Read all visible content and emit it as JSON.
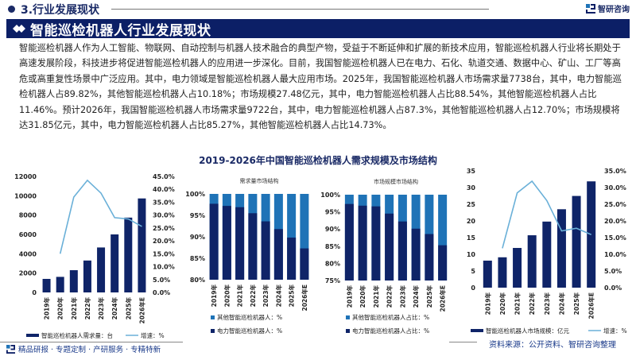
{
  "header": {
    "section_label": "3.行业发展现状",
    "brand": "智研咨询",
    "banner_title": "智能巡检机器人行业发展现状"
  },
  "paragraph": "智能巡检机器人作为人工智能、物联网、自动控制与机器人技术融合的典型产物，受益于不断延伸和扩展的新技术应用，智能巡检机器人行业将长期处于高速发展阶段，科技进步将促进智能巡检机器人的应用进一步深化。目前，我国智能巡检机器人已在电力、石化、轨道交通、数据中心、矿山、工厂等高危或高重复性场景中广泛应用。其中，电力领域是智能巡检机器人最大应用市场。2025年，我国智能巡检机器人市场需求量7738台，其中，电力智能巡检机器人占89.82%，其他智能巡检机器人占10.18%；市场规模27.48亿元，其中，电力智能巡检机器人占比88.54%，其他智能巡检机器人占比11.46%。预计2026年，我国智能巡检机器人市场需求量9722台，其中，电力智能巡检机器人占87.3%，其他智能巡检机器人占12.70%；市场规模将达31.85亿元，其中，电力智能巡检机器人占比85.27%，其他智能巡检机器人占比14.73%。",
  "figure_title": "2019-2026年中国智能巡检机器人需求规模及市场结构",
  "footer": {
    "slogan": "精品研报 · 专题定制 · 产研服务 · 专精特新",
    "source": "资料来源：公开资料、智研咨询整理"
  },
  "colors": {
    "navy": "#0c1f66",
    "bar_dark": "#0f2468",
    "bar_light": "#1f73b7",
    "line": "#6ab0d8"
  },
  "chart_data": [
    {
      "type": "bar+line",
      "title": "智能巡检机器人需求量",
      "categories": [
        "2019年",
        "2020年",
        "2021年",
        "2022年",
        "2023年",
        "2024年",
        "2025年",
        "2026年E"
      ],
      "series": [
        {
          "name": "智能巡检机器人需求量：台",
          "type": "bar",
          "axis": "left",
          "values": [
            1400,
            1610,
            2300,
            3300,
            4650,
            6000,
            7738,
            9722
          ]
        },
        {
          "name": "增速：%",
          "type": "line",
          "axis": "right",
          "values": [
            null,
            15.0,
            37.0,
            43.5,
            38.5,
            29.0,
            28.5,
            25.6
          ]
        }
      ],
      "left_ticks": [
        "0",
        "2000",
        "4000",
        "6000",
        "8000",
        "10000",
        "12000"
      ],
      "right_ticks": [
        "0.0%",
        "5.0%",
        "10.0%",
        "15.0%",
        "20.0%",
        "25.0%",
        "30.0%",
        "35.0%",
        "40.0%",
        "45.0%"
      ],
      "ylim_left": [
        0,
        12000
      ],
      "ylim_right": [
        0,
        45
      ],
      "legend": [
        "智能巡检机器人需求量：台",
        "增速：%"
      ]
    },
    {
      "type": "stacked_bar",
      "title": "需求量市场结构",
      "categories": [
        "2019年",
        "2020年",
        "2021年",
        "2022年",
        "2023年",
        "2024年",
        "2025年",
        "2026年E"
      ],
      "series": [
        {
          "name": "电力智能巡检机器人：%",
          "values": [
            97.7,
            97.2,
            96.9,
            95.5,
            93.6,
            91.8,
            89.82,
            87.3
          ]
        },
        {
          "name": "其他智能巡检机器人：%",
          "values": [
            2.3,
            2.8,
            3.1,
            4.5,
            6.4,
            8.2,
            10.18,
            12.7
          ]
        }
      ],
      "ticks": [
        "80%",
        "85%",
        "90%",
        "95%",
        "100%"
      ],
      "ylim": [
        80,
        100
      ],
      "legend": [
        "其他智能巡检机器人：%",
        "电力智能巡检机器人：%"
      ]
    },
    {
      "type": "stacked_bar",
      "title": "市场规模市场结构",
      "categories": [
        "2019年",
        "2020年",
        "2021年",
        "2022年",
        "2023年",
        "2024年",
        "2025年",
        "2026年E"
      ],
      "series": [
        {
          "name": "电力智能巡检机器人占比：%",
          "values": [
            97.3,
            96.8,
            96.6,
            94.5,
            92.2,
            90.1,
            88.54,
            85.27
          ]
        },
        {
          "name": "其他智能巡检机器人占比：%",
          "values": [
            2.7,
            3.2,
            3.4,
            5.5,
            7.8,
            9.9,
            11.46,
            14.73
          ]
        }
      ],
      "ticks": [
        "75%",
        "80%",
        "85%",
        "90%",
        "95%",
        "100%"
      ],
      "ylim": [
        75,
        100
      ],
      "legend": [
        "其他智能巡检机器人占比：%",
        "电力智能巡检机器人占比：%"
      ]
    },
    {
      "type": "bar+line",
      "title": "智能巡检机器人市场规模",
      "categories": [
        "2019年",
        "2020年",
        "2021年",
        "2022年",
        "2023年",
        "2024年",
        "2025年",
        "2026年E"
      ],
      "series": [
        {
          "name": "智能巡检机器人市场规模：亿元",
          "type": "bar",
          "axis": "left",
          "values": [
            8.1,
            9.1,
            11.9,
            15.7,
            19.8,
            23.5,
            27.48,
            31.85
          ]
        },
        {
          "name": "增速：%",
          "type": "line",
          "axis": "right",
          "values": [
            null,
            11.8,
            28.4,
            31.9,
            26.1,
            17.0,
            17.8,
            15.9
          ]
        }
      ],
      "left_ticks": [
        "0",
        "5",
        "10",
        "15",
        "20",
        "25",
        "30",
        "35"
      ],
      "right_ticks": [
        "0.0%",
        "5.0%",
        "10.0%",
        "15.0%",
        "20.0%",
        "25.0%",
        "30.0%",
        "35.0%"
      ],
      "ylim_left": [
        0,
        35
      ],
      "ylim_right": [
        0,
        35
      ],
      "legend": [
        "智能巡检机器人市场规模：亿元",
        "增速：%"
      ]
    }
  ]
}
